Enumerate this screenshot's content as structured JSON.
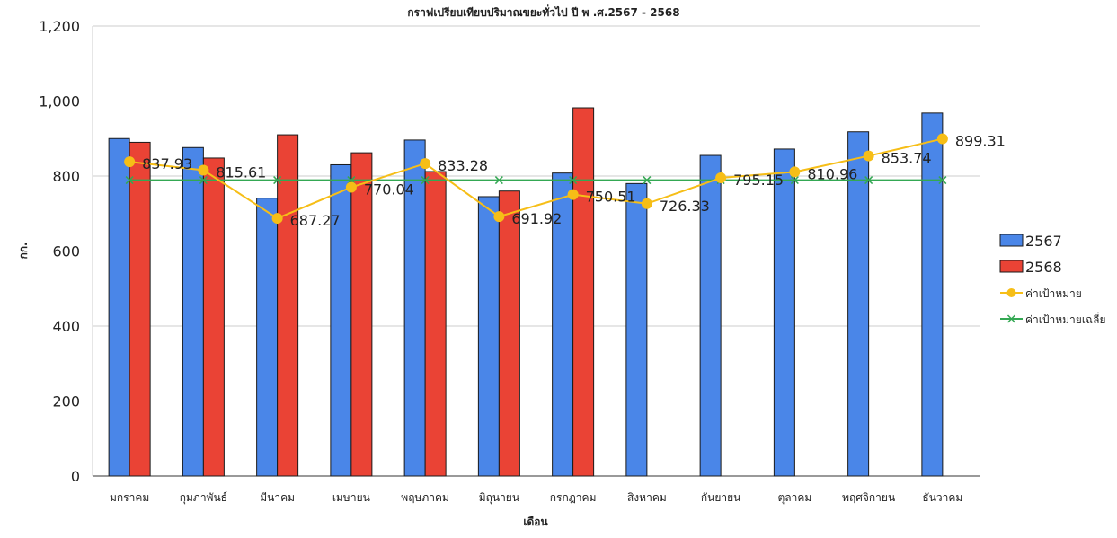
{
  "chart_data": {
    "type": "bar",
    "title": "กราฟเปรียบเทียบปริมาณขยะทั่วไป ปี พ .ศ.2567 - 2568",
    "xlabel": "เดือน",
    "ylabel": "กก.",
    "ylim": [
      0,
      1200
    ],
    "yticks": [
      "0",
      "200",
      "400",
      "600",
      "800",
      "1,000",
      "1,200"
    ],
    "grid": true,
    "legend_position": "right",
    "categories": [
      "มกราคม",
      "กุมภาพันธ์",
      "มีนาคม",
      "เมษายน",
      "พฤษภาคม",
      "มิถุนายน",
      "กรกฎาคม",
      "สิงหาคม",
      "กันยายน",
      "ตุลาคม",
      "พฤศจิกายน",
      "ธันวาคม"
    ],
    "series": [
      {
        "name": "2567",
        "kind": "bar",
        "color": "#4a86e8",
        "values": [
          900,
          876,
          741,
          830,
          896,
          745,
          808,
          780,
          855,
          872,
          918,
          968
        ]
      },
      {
        "name": "2568",
        "kind": "bar",
        "color": "#ea4335",
        "values": [
          890,
          848,
          910,
          862,
          812,
          760,
          982,
          null,
          null,
          null,
          null,
          null
        ]
      },
      {
        "name": "ค่าเป้าหมาย",
        "kind": "line",
        "color": "#f6be17",
        "marker": "circle",
        "values": [
          837.93,
          815.61,
          687.27,
          770.04,
          833.28,
          691.92,
          750.51,
          726.33,
          795.15,
          810.96,
          853.74,
          899.31
        ],
        "labels": [
          "837.93",
          "815.61",
          "687.27",
          "770.04",
          "833.28",
          "691.92",
          "750.51",
          "726.33",
          "795.15",
          "810.96",
          "853.74",
          "899.31"
        ]
      },
      {
        "name": "ค่าเป้าหมายเฉลี่ย",
        "kind": "line",
        "color": "#34a853",
        "marker": "x",
        "values": [
          789,
          789,
          789,
          789,
          789,
          789,
          789,
          789,
          789,
          789,
          789,
          789
        ]
      }
    ]
  }
}
